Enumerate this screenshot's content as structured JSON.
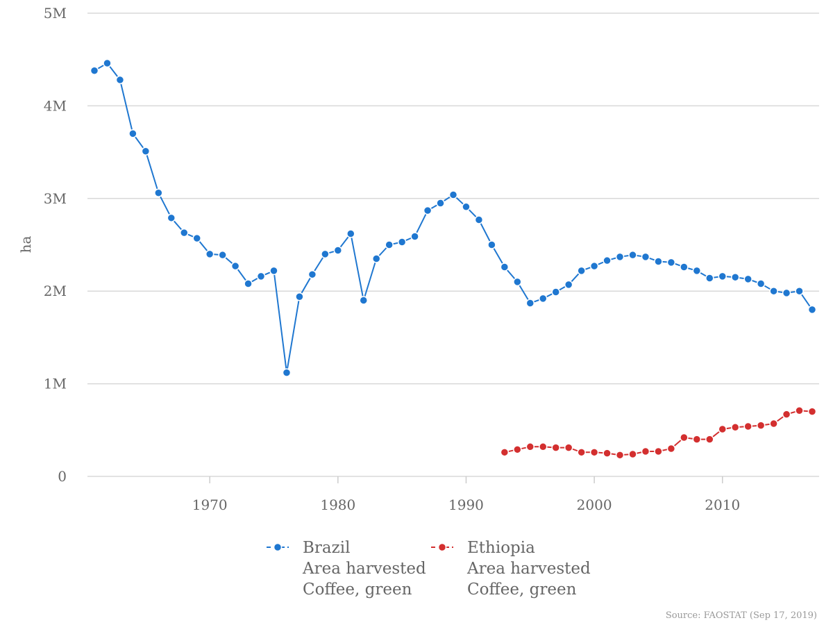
{
  "chart_data": {
    "type": "line",
    "xlabel": "",
    "ylabel": "ha",
    "xlim": [
      1961,
      2017
    ],
    "ylim": [
      0,
      5000000
    ],
    "x_ticks": [
      1970,
      1980,
      1990,
      2000,
      2010
    ],
    "y_ticks": [
      {
        "value": 0,
        "label": "0"
      },
      {
        "value": 1000000,
        "label": "1M"
      },
      {
        "value": 2000000,
        "label": "2M"
      },
      {
        "value": 3000000,
        "label": "3M"
      },
      {
        "value": 4000000,
        "label": "4M"
      },
      {
        "value": 5000000,
        "label": "5M"
      }
    ],
    "grid": true,
    "legend_position": "bottom-center",
    "source": "Source: FAOSTAT (Sep 17, 2019)",
    "series": [
      {
        "name": "Brazil",
        "legend_lines": [
          "Brazil",
          "Area harvested",
          "Coffee, green"
        ],
        "color": "#1f77d0",
        "x": [
          1961,
          1962,
          1963,
          1964,
          1965,
          1966,
          1967,
          1968,
          1969,
          1970,
          1971,
          1972,
          1973,
          1974,
          1975,
          1976,
          1977,
          1978,
          1979,
          1980,
          1981,
          1982,
          1983,
          1984,
          1985,
          1986,
          1987,
          1988,
          1989,
          1990,
          1991,
          1992,
          1993,
          1994,
          1995,
          1996,
          1997,
          1998,
          1999,
          2000,
          2001,
          2002,
          2003,
          2004,
          2005,
          2006,
          2007,
          2008,
          2009,
          2010,
          2011,
          2012,
          2013,
          2014,
          2015,
          2016,
          2017
        ],
        "values": [
          4380000,
          4460000,
          4280000,
          3700000,
          3510000,
          3060000,
          2790000,
          2630000,
          2570000,
          2400000,
          2390000,
          2270000,
          2080000,
          2160000,
          2220000,
          1120000,
          1940000,
          2180000,
          2400000,
          2440000,
          2620000,
          1900000,
          2350000,
          2500000,
          2530000,
          2590000,
          2870000,
          2950000,
          3040000,
          2910000,
          2770000,
          2500000,
          2260000,
          2100000,
          1870000,
          1920000,
          1990000,
          2070000,
          2220000,
          2270000,
          2330000,
          2370000,
          2390000,
          2370000,
          2320000,
          2310000,
          2260000,
          2220000,
          2140000,
          2160000,
          2150000,
          2130000,
          2080000,
          2000000,
          1980000,
          2000000,
          1800000
        ]
      },
      {
        "name": "Ethiopia",
        "legend_lines": [
          "Ethiopia",
          "Area harvested",
          "Coffee, green"
        ],
        "color": "#d32f2f",
        "x": [
          1993,
          1994,
          1995,
          1996,
          1997,
          1998,
          1999,
          2000,
          2001,
          2002,
          2003,
          2004,
          2005,
          2006,
          2007,
          2008,
          2009,
          2010,
          2011,
          2012,
          2013,
          2014,
          2015,
          2016,
          2017
        ],
        "values": [
          260000,
          290000,
          320000,
          320000,
          310000,
          310000,
          260000,
          260000,
          250000,
          230000,
          240000,
          270000,
          270000,
          300000,
          420000,
          400000,
          400000,
          510000,
          530000,
          540000,
          550000,
          570000,
          670000,
          710000,
          700000
        ]
      }
    ]
  }
}
